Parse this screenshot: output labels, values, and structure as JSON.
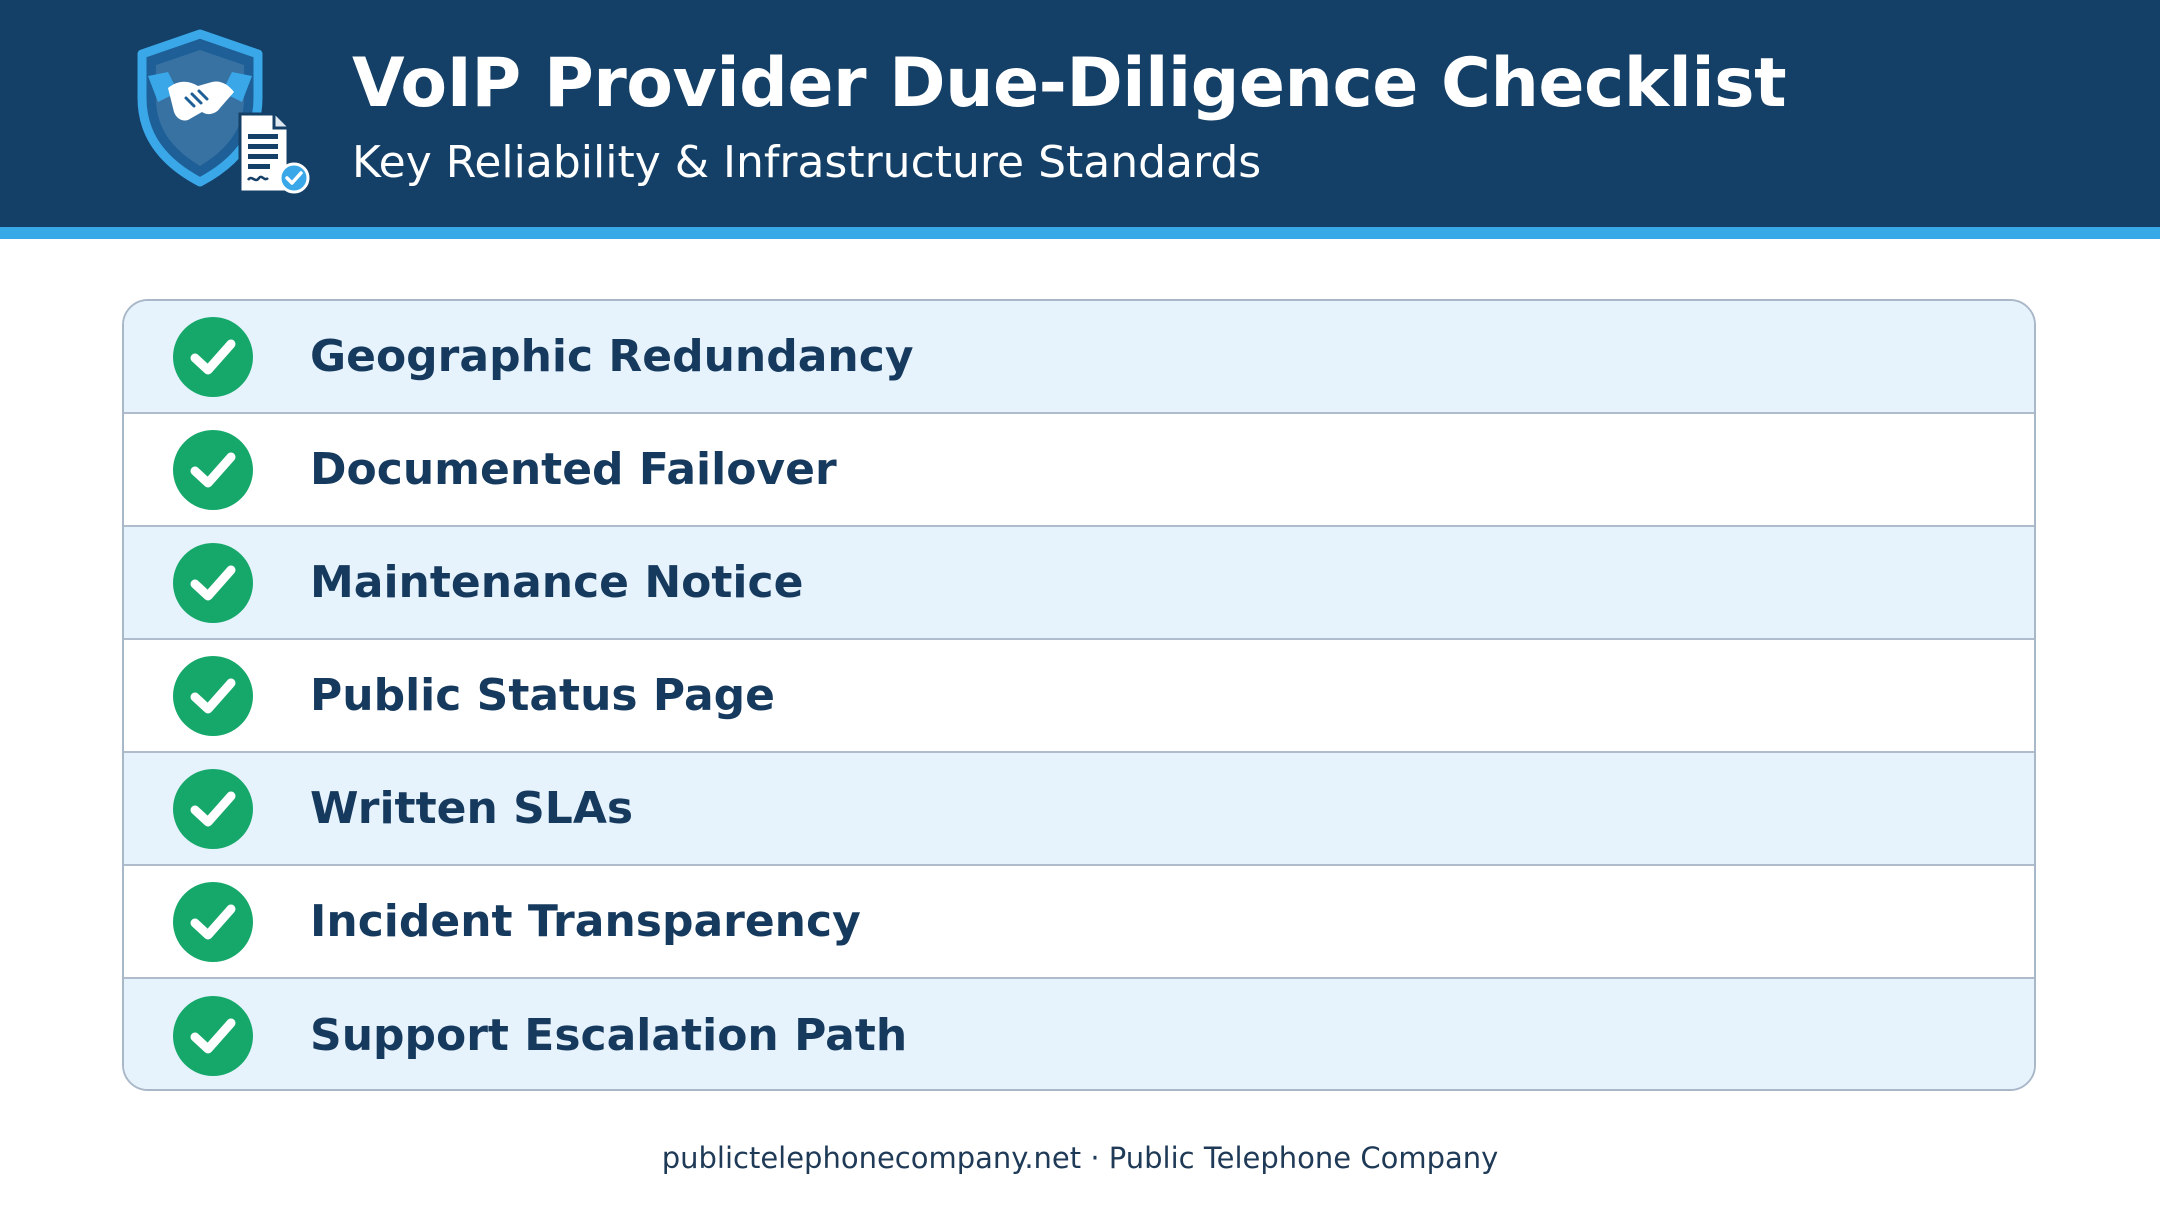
{
  "header": {
    "title": "VoIP Provider Due-Diligence Checklist",
    "subtitle": "Key Reliability & Infrastructure Standards",
    "logo_icon": "shield-handshake-document-icon"
  },
  "checklist": {
    "check_icon": "green-check-circle-icon",
    "items": [
      {
        "label": "Geographic Redundancy",
        "checked": true
      },
      {
        "label": "Documented Failover",
        "checked": true
      },
      {
        "label": "Maintenance Notice",
        "checked": true
      },
      {
        "label": "Public Status Page",
        "checked": true
      },
      {
        "label": "Written SLAs",
        "checked": true
      },
      {
        "label": "Incident Transparency",
        "checked": true
      },
      {
        "label": "Support Escalation Path",
        "checked": true
      }
    ]
  },
  "footer": {
    "text": "publictelephonecompany.net · Public Telephone Company"
  },
  "colors": {
    "header_bg": "#143f66",
    "header_stripe": "#36a9e6",
    "row_alt_bg": "#e6f2fc",
    "check_green": "#15a86a",
    "label_text": "#163a5e"
  }
}
